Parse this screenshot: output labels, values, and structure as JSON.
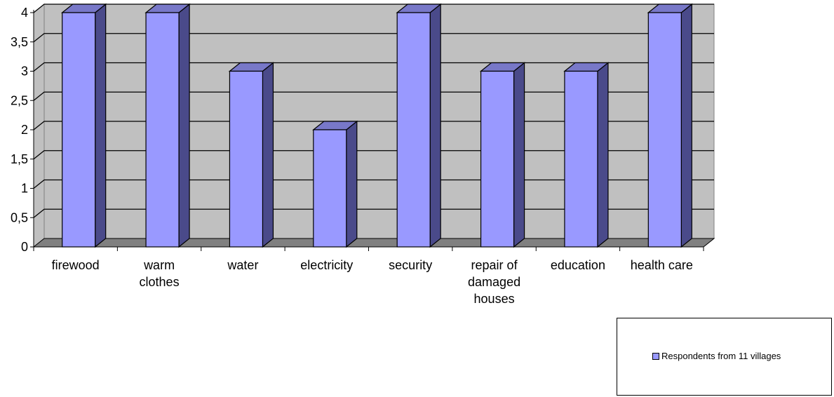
{
  "chart_data": {
    "type": "bar",
    "categories": [
      "firewood",
      "warm clothes",
      "water",
      "electricity",
      "security",
      "repair of damaged houses",
      "education",
      "health care"
    ],
    "category_lines": [
      [
        "firewood"
      ],
      [
        "warm",
        "clothes"
      ],
      [
        "water"
      ],
      [
        "electricity"
      ],
      [
        "security"
      ],
      [
        "repair of",
        "damaged",
        "houses"
      ],
      [
        "education"
      ],
      [
        "health care"
      ]
    ],
    "series": [
      {
        "name": "Respondents from 11 villages",
        "values": [
          4,
          4,
          3,
          2,
          4,
          3,
          3,
          4
        ]
      }
    ],
    "yticks": [
      "0",
      "0,5",
      "1",
      "1,5",
      "2",
      "2,5",
      "3",
      "3,5",
      "4"
    ],
    "ylim": [
      0,
      4
    ],
    "grid": true,
    "legend_position": "bottom-right",
    "colors": {
      "bar_front": "#9999ff",
      "bar_side": "#4a4a8a",
      "bar_top": "#7878c8",
      "wall": "#c0c0c0",
      "floor": "#808080"
    }
  },
  "legend": {
    "label": "Respondents from 11 villages"
  }
}
